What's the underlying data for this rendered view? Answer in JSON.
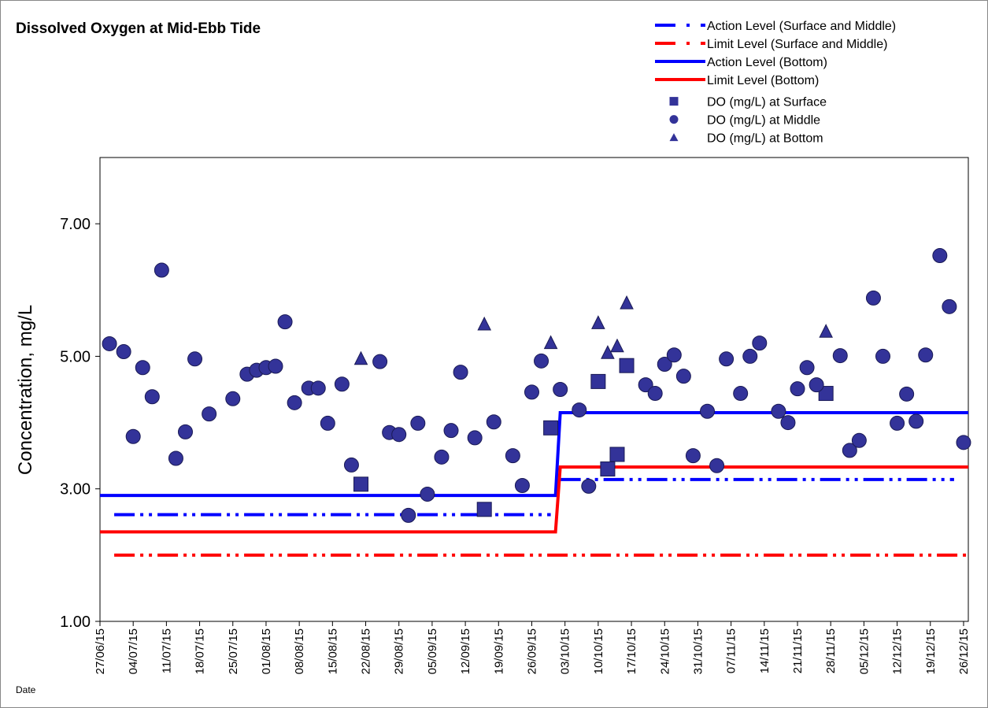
{
  "chart_data": {
    "type": "scatter",
    "title": "Dissolved Oxygen at Mid-Ebb Tide",
    "ylabel": "Concentration, mg/L",
    "xlabel": "Date",
    "ylim": [
      1,
      8
    ],
    "yticks": [
      {
        "value": 1,
        "label": "1.00"
      },
      {
        "value": 3,
        "label": "3.00"
      },
      {
        "value": 5,
        "label": "5.00"
      },
      {
        "value": 7,
        "label": "7.00"
      }
    ],
    "xlim": [
      "27/06/15",
      "27/12/15"
    ],
    "xticks": [
      "27/06/15",
      "04/07/15",
      "11/07/15",
      "18/07/15",
      "25/07/15",
      "01/08/15",
      "08/08/15",
      "15/08/15",
      "22/08/15",
      "29/08/15",
      "05/09/15",
      "12/09/15",
      "19/09/15",
      "26/09/15",
      "03/10/15",
      "10/10/15",
      "17/10/15",
      "24/10/15",
      "31/10/15",
      "07/11/15",
      "14/11/15",
      "21/11/15",
      "28/11/15",
      "05/12/15",
      "12/12/15",
      "19/12/15",
      "26/12/15"
    ],
    "series": [
      {
        "name": "Action Level (Surface and Middle)",
        "kind": "line",
        "dash": "dash-dot-dot",
        "color": "#0000ff",
        "x": [
          "30/06/15",
          "30/09/15",
          "01/10/15",
          "02/10/15",
          "24/12/15"
        ],
        "values": [
          2.61,
          2.61,
          null,
          3.14,
          3.14
        ]
      },
      {
        "name": "Limit Level (Surface and Middle)",
        "kind": "line",
        "dash": "dash-dot-dot",
        "color": "#ff0000",
        "x": [
          "30/06/15",
          "27/12/15"
        ],
        "values": [
          2.0,
          2.0
        ]
      },
      {
        "name": "Action Level (Bottom)",
        "kind": "line",
        "dash": "solid",
        "color": "#0000ff",
        "x": [
          "27/06/15",
          "01/10/15",
          "02/10/15",
          "27/12/15"
        ],
        "values": [
          2.9,
          2.9,
          4.15,
          4.15
        ]
      },
      {
        "name": "Limit Level (Bottom)",
        "kind": "line",
        "dash": "solid",
        "color": "#ff0000",
        "x": [
          "27/06/15",
          "01/10/15",
          "02/10/15",
          "27/12/15"
        ],
        "values": [
          2.35,
          2.35,
          3.33,
          3.33
        ]
      },
      {
        "name": "DO (mg/L) at Surface",
        "kind": "scatter",
        "marker": "square",
        "color": "#333399",
        "x": [
          "21/08/15",
          "16/09/15",
          "30/09/15",
          "10/10/15",
          "12/10/15",
          "14/10/15",
          "16/10/15",
          "27/11/15"
        ],
        "values": [
          3.07,
          2.69,
          3.92,
          4.62,
          3.3,
          3.52,
          4.86,
          4.44
        ]
      },
      {
        "name": "DO (mg/L) at Middle",
        "kind": "scatter",
        "marker": "circle",
        "color": "#333399",
        "x": [
          "29/06/15",
          "02/07/15",
          "04/07/15",
          "06/07/15",
          "08/07/15",
          "10/07/15",
          "13/07/15",
          "15/07/15",
          "17/07/15",
          "20/07/15",
          "25/07/15",
          "28/07/15",
          "30/07/15",
          "01/08/15",
          "03/08/15",
          "05/08/15",
          "07/08/15",
          "10/08/15",
          "12/08/15",
          "14/08/15",
          "17/08/15",
          "19/08/15",
          "25/08/15",
          "27/08/15",
          "29/08/15",
          "31/08/15",
          "02/09/15",
          "04/09/15",
          "07/09/15",
          "09/09/15",
          "11/09/15",
          "14/09/15",
          "18/09/15",
          "22/09/15",
          "24/09/15",
          "26/09/15",
          "28/09/15",
          "02/10/15",
          "06/10/15",
          "08/10/15",
          "20/10/15",
          "22/10/15",
          "24/10/15",
          "26/10/15",
          "28/10/15",
          "30/10/15",
          "02/11/15",
          "04/11/15",
          "06/11/15",
          "09/11/15",
          "11/11/15",
          "13/11/15",
          "17/11/15",
          "19/11/15",
          "21/11/15",
          "23/11/15",
          "25/11/15",
          "30/11/15",
          "02/12/15",
          "04/12/15",
          "07/12/15",
          "09/12/15",
          "12/12/15",
          "14/12/15",
          "16/12/15",
          "18/12/15",
          "21/12/15",
          "23/12/15",
          "26/12/15"
        ],
        "values": [
          5.19,
          5.07,
          3.79,
          4.83,
          4.39,
          6.3,
          3.46,
          3.86,
          4.96,
          4.13,
          4.36,
          4.73,
          4.79,
          4.83,
          4.85,
          5.52,
          4.3,
          4.52,
          4.52,
          3.99,
          4.58,
          3.36,
          4.92,
          3.85,
          3.82,
          2.6,
          3.99,
          2.92,
          3.48,
          3.88,
          4.76,
          3.77,
          4.01,
          3.5,
          3.05,
          4.46,
          4.93,
          4.5,
          4.19,
          3.04,
          4.57,
          4.44,
          4.88,
          5.02,
          4.7,
          3.5,
          4.17,
          3.35,
          4.96,
          4.44,
          5.0,
          5.2,
          4.17,
          4.0,
          4.51,
          4.83,
          4.57,
          5.01,
          3.58,
          3.73,
          5.88,
          5.0,
          3.99,
          4.43,
          4.02,
          5.02,
          6.52,
          5.75,
          3.7
        ]
      },
      {
        "name": "DO (mg/L) at Bottom",
        "kind": "scatter",
        "marker": "triangle",
        "color": "#333399",
        "x": [
          "21/08/15",
          "16/09/15",
          "30/09/15",
          "10/10/15",
          "12/10/15",
          "14/10/15",
          "16/10/15",
          "27/11/15"
        ],
        "values": [
          4.96,
          5.48,
          5.2,
          5.5,
          5.05,
          5.15,
          5.8,
          5.37
        ]
      }
    ]
  }
}
